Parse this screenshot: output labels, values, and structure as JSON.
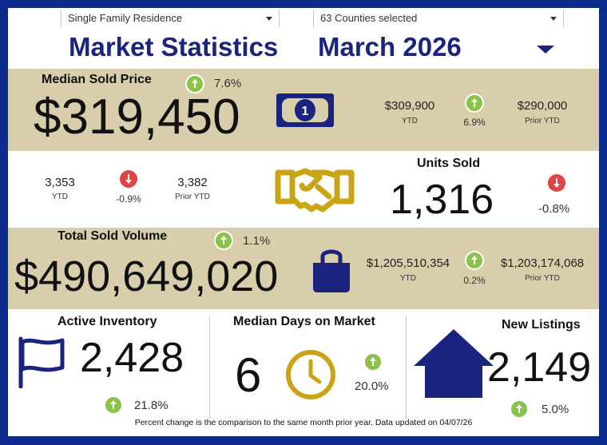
{
  "header": {
    "property_type": "Single Family Residence",
    "counties": "63 Counties selected",
    "title": "Market Statistics",
    "period": "March 2026"
  },
  "median_price": {
    "label": "Median Sold Price",
    "value": "$319,450",
    "change": "7.6%",
    "change_direction": "up",
    "ytd_value": "$309,900",
    "ytd_label": "YTD",
    "ytd_change": "6.9%",
    "ytd_change_direction": "up",
    "prior_ytd_value": "$290,000",
    "prior_ytd_label": "Prior YTD",
    "icon": "money-bill-icon"
  },
  "units_sold": {
    "label": "Units Sold",
    "value": "1,316",
    "change": "-0.8%",
    "change_direction": "down",
    "ytd_value": "3,353",
    "ytd_label": "YTD",
    "ytd_change": "-0.9%",
    "ytd_change_direction": "down",
    "prior_ytd_value": "3,382",
    "prior_ytd_label": "Prior YTD",
    "icon": "handshake-icon"
  },
  "sold_volume": {
    "label": "Total Sold Volume",
    "value": "$490,649,020",
    "change": "1.1%",
    "change_direction": "up",
    "ytd_value": "$1,205,510,354",
    "ytd_label": "YTD",
    "ytd_change": "0.2%",
    "ytd_change_direction": "up",
    "prior_ytd_value": "$1,203,174,068",
    "prior_ytd_label": "Prior YTD",
    "icon": "shopping-bag-icon"
  },
  "active_inventory": {
    "label": "Active Inventory",
    "value": "2,428",
    "change": "21.8%",
    "change_direction": "up",
    "icon": "flag-icon"
  },
  "days_on_market": {
    "label": "Median Days on Market",
    "value": "6",
    "change": "20.0%",
    "change_direction": "up",
    "icon": "clock-icon"
  },
  "new_listings": {
    "label": "New Listings",
    "value": "2,149",
    "change": "5.0%",
    "change_direction": "up",
    "icon": "house-icon"
  },
  "footer": "Percent change is the comparison to the same month prior year. Data updated on 04/07/26",
  "colors": {
    "navy": "#1a237e",
    "tan_band": "#d8ceac",
    "gold": "#c9a516",
    "up_green": "#8bc34a",
    "down_red": "#e04545",
    "border_blue": "#0b2a8c"
  }
}
